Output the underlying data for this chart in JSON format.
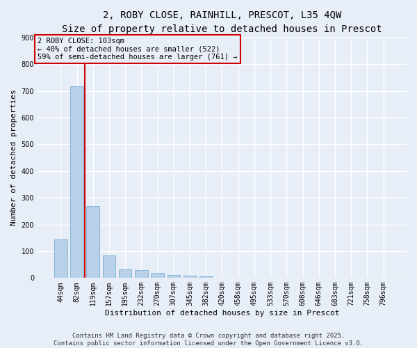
{
  "title_line1": "2, ROBY CLOSE, RAINHILL, PRESCOT, L35 4QW",
  "title_line2": "Size of property relative to detached houses in Prescot",
  "xlabel": "Distribution of detached houses by size in Prescot",
  "ylabel": "Number of detached properties",
  "categories": [
    "44sqm",
    "82sqm",
    "119sqm",
    "157sqm",
    "195sqm",
    "232sqm",
    "270sqm",
    "307sqm",
    "345sqm",
    "382sqm",
    "420sqm",
    "458sqm",
    "495sqm",
    "533sqm",
    "570sqm",
    "608sqm",
    "646sqm",
    "683sqm",
    "721sqm",
    "758sqm",
    "796sqm"
  ],
  "values": [
    143,
    718,
    270,
    85,
    32,
    30,
    18,
    12,
    8,
    5,
    0,
    0,
    0,
    0,
    0,
    0,
    0,
    0,
    0,
    0,
    0
  ],
  "bar_color": "#b8d0e8",
  "bar_edge_color": "#7aafd4",
  "vline_x": 1.5,
  "vline_color": "#cc0000",
  "annotation_text": "2 ROBY CLOSE: 103sqm\n← 40% of detached houses are smaller (522)\n59% of semi-detached houses are larger (761) →",
  "annotation_box_color": "#cc0000",
  "annotation_text_color": "#000000",
  "ylim": [
    0,
    900
  ],
  "yticks": [
    0,
    100,
    200,
    300,
    400,
    500,
    600,
    700,
    800,
    900
  ],
  "background_color": "#e8eef8",
  "grid_color": "#ffffff",
  "footer_text": "Contains HM Land Registry data © Crown copyright and database right 2025.\nContains public sector information licensed under the Open Government Licence v3.0.",
  "title_fontsize": 10,
  "subtitle_fontsize": 9,
  "axis_label_fontsize": 8,
  "tick_fontsize": 7,
  "annotation_fontsize": 7.5,
  "footer_fontsize": 6.5
}
